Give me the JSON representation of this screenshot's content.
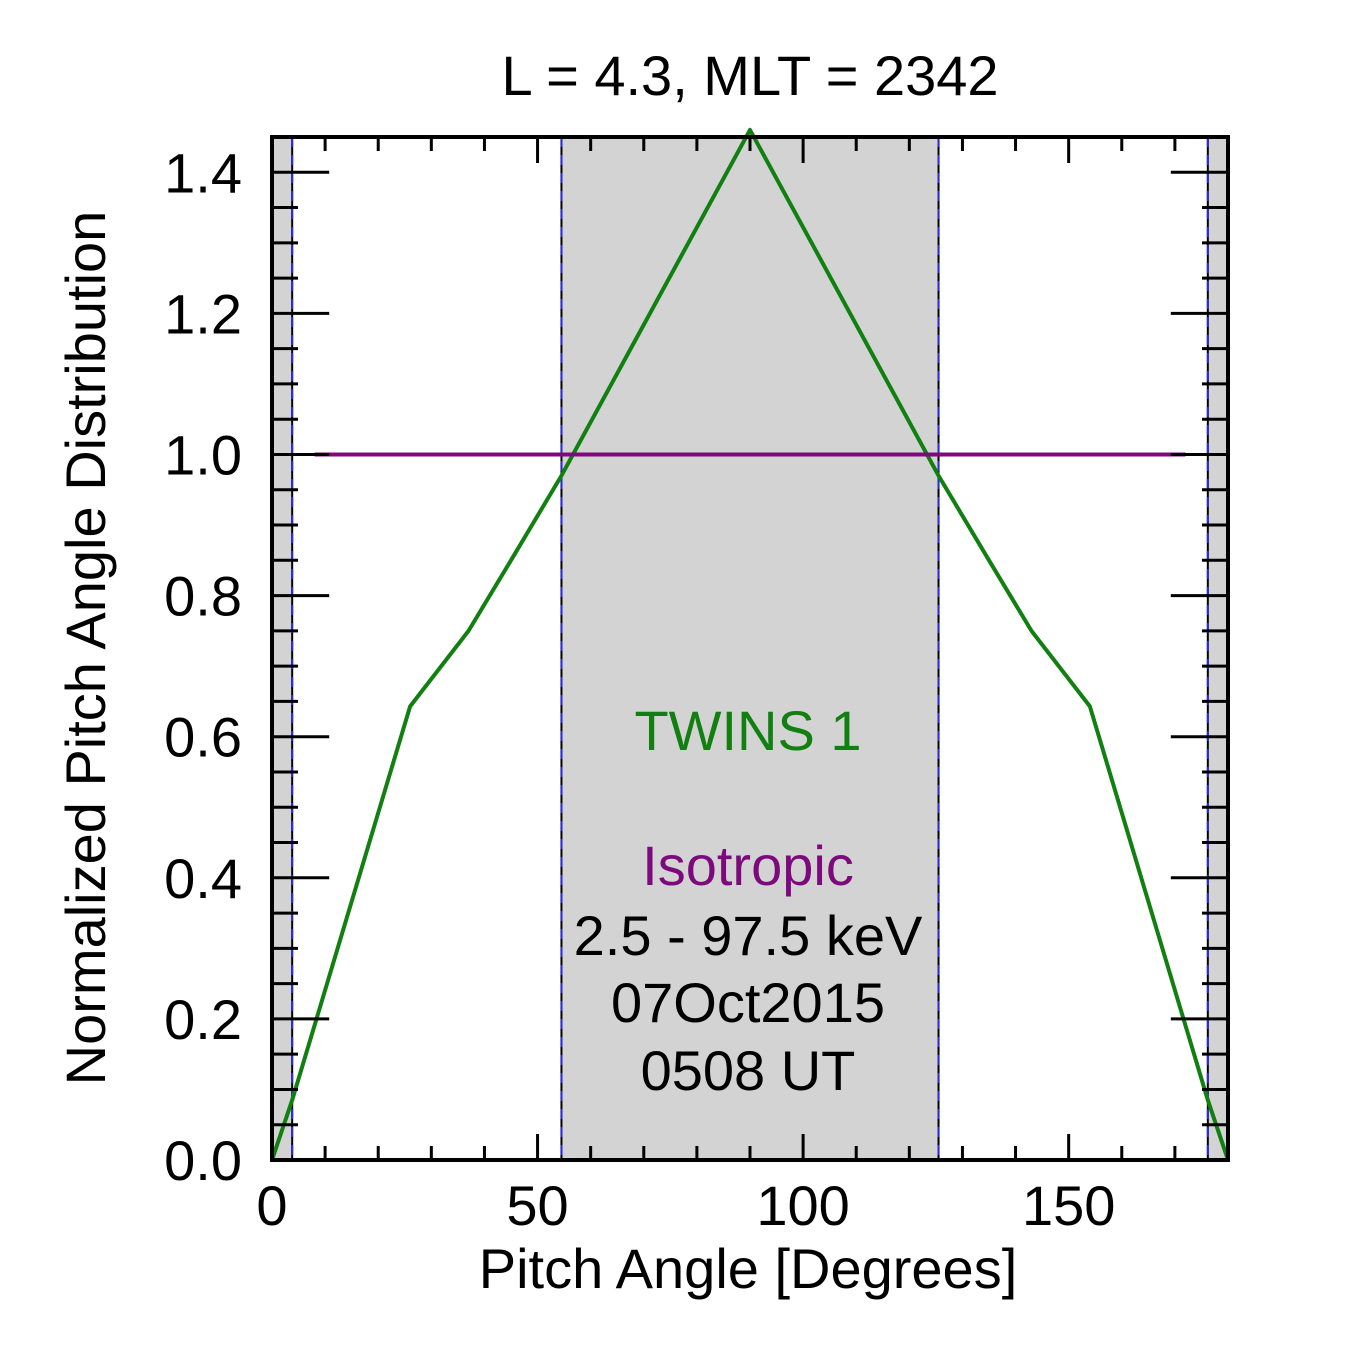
{
  "chart_data": {
    "type": "line",
    "title": "L =  4.3, MLT = 2342",
    "xlabel": "Pitch Angle [Degrees]",
    "ylabel": "Normalized Pitch Angle Distribution",
    "xlim": [
      0,
      180
    ],
    "ylim": [
      0,
      1.45
    ],
    "xticks": [
      0,
      50,
      100,
      150
    ],
    "xtick_labels": [
      "0",
      "50",
      "100",
      "150"
    ],
    "yticks": [
      0.0,
      0.2,
      0.4,
      0.6,
      0.8,
      1.0,
      1.2,
      1.4
    ],
    "ytick_labels": [
      "0.0",
      "0.2",
      "0.4",
      "0.6",
      "0.8",
      "1.0",
      "1.2",
      "1.4"
    ],
    "x_minor_step": 10,
    "y_minor_step": 0.05,
    "shaded_regions": [
      [
        0,
        3.8
      ],
      [
        54.5,
        125.5
      ],
      [
        176.2,
        180
      ]
    ],
    "series": [
      {
        "name": "TWINS 1",
        "color": "#118011",
        "x": [
          0,
          3.8,
          26,
          37,
          45,
          54.5,
          90,
          125.5,
          135,
          143,
          154,
          176.2,
          180
        ],
        "values": [
          0,
          0.085,
          0.643,
          0.75,
          0.85,
          0.97,
          1.46,
          0.97,
          0.85,
          0.75,
          0.643,
          0.085,
          0
        ]
      },
      {
        "name": "Isotropic",
        "color": "#7d0a7d",
        "x": [
          8,
          172
        ],
        "values": [
          1.0,
          1.0
        ]
      }
    ],
    "annotations": {
      "series1_label": "TWINS 1",
      "series2_label": "Isotropic",
      "energy_range": "2.5 - 97.5 keV",
      "date": "07Oct2015",
      "time": "0508 UT"
    },
    "colors": {
      "shade": "#d3d3d3",
      "boundary_dash": "#2b2bd6",
      "axis": "#000000"
    }
  }
}
